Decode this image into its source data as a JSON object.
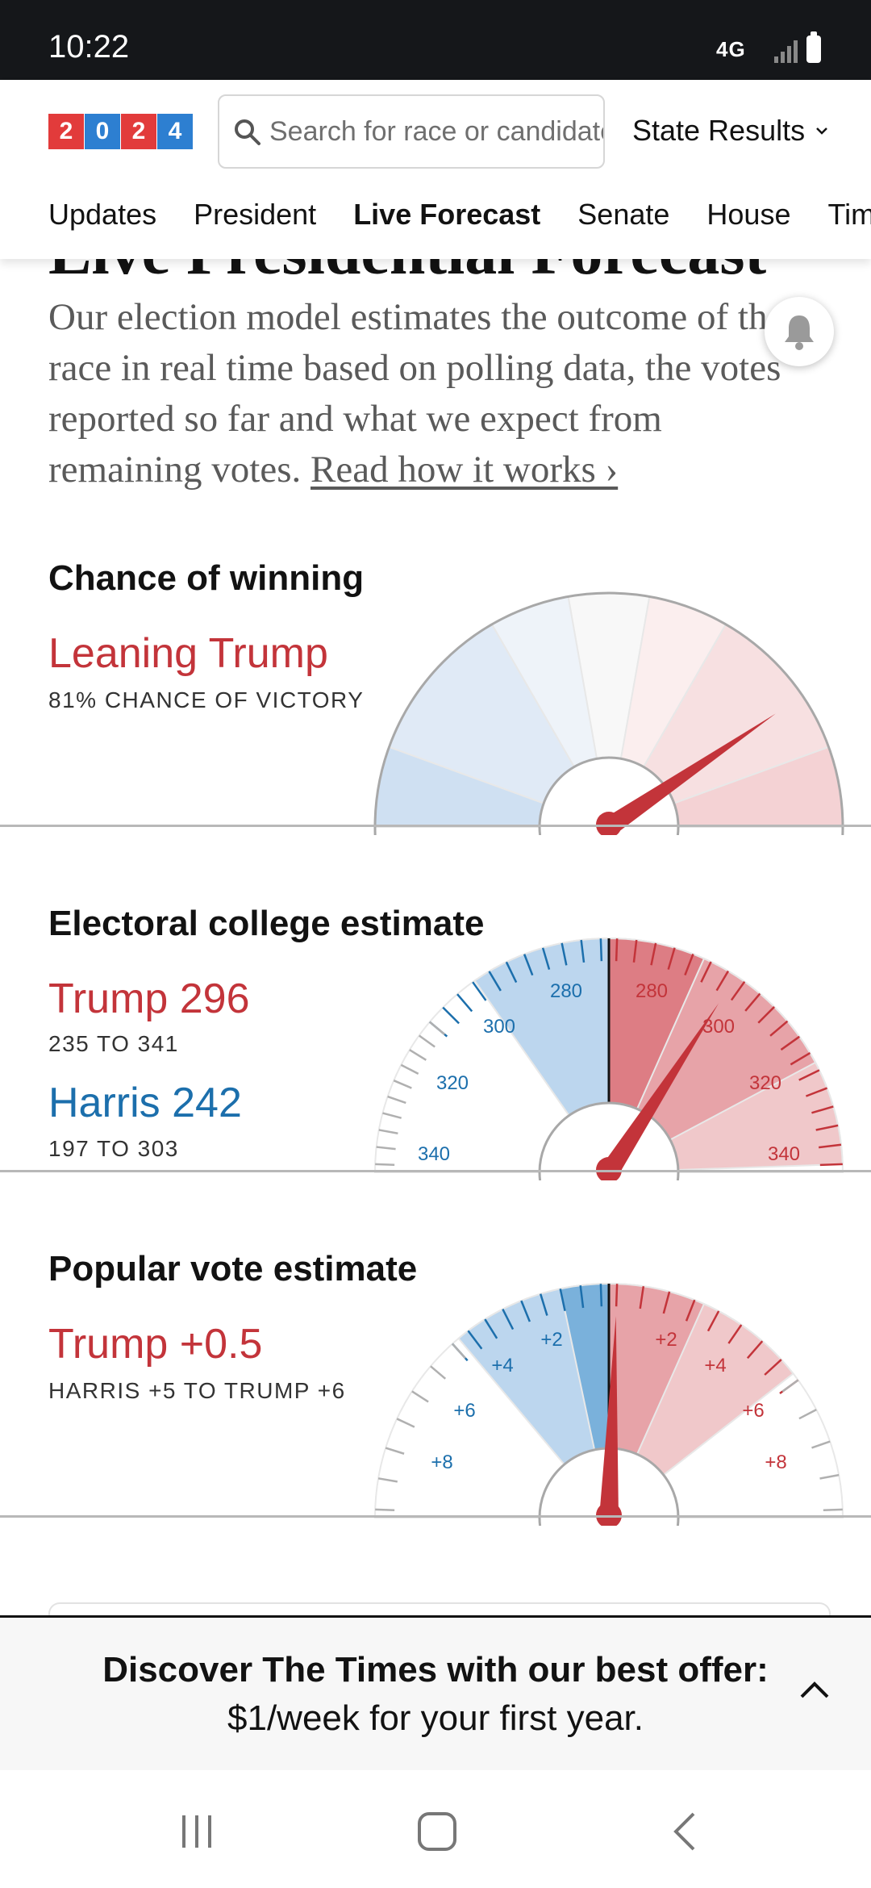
{
  "status_bar": {
    "time": "10:22",
    "network": "4G"
  },
  "header": {
    "logo_digits": [
      "2",
      "0",
      "2",
      "4"
    ],
    "search_placeholder": "Search for race or candidate",
    "state_results_label": "State Results",
    "tabs": [
      {
        "label": "Updates",
        "active": false
      },
      {
        "label": "President",
        "active": false
      },
      {
        "label": "Live Forecast",
        "active": true
      },
      {
        "label": "Senate",
        "active": false
      },
      {
        "label": "House",
        "active": false
      },
      {
        "label": "Tim",
        "active": false
      }
    ]
  },
  "page": {
    "title": "Live Presidential Forecast",
    "intro": "Our election model estimates the outcome of the race in real time based on polling data, the votes reported so far and what we expect from remaining votes.",
    "read_more": "Read how it works ›"
  },
  "chance": {
    "title": "Chance of winning",
    "leader": "Leaning Trump",
    "subtitle": "81% CHANCE OF VICTORY",
    "value": 81
  },
  "electoral": {
    "title": "Electoral college estimate",
    "trump_label": "Trump 296",
    "trump_range": "235 TO 341",
    "harris_label": "Harris 242",
    "harris_range": "197 TO 303",
    "tick_labels": [
      "280",
      "300",
      "320",
      "340"
    ],
    "trump_estimate": 296
  },
  "popular": {
    "title": "Popular vote estimate",
    "leader": "Trump +0.5",
    "range": "HARRIS +5 TO TRUMP +6",
    "tick_labels": [
      "+2",
      "+4",
      "+6",
      "+8"
    ],
    "trump_margin": 0.5
  },
  "promo": {
    "line1": "Discover The Times with our best offer:",
    "line2": "$1/week for your first year."
  },
  "colors": {
    "trump": "#c3343a",
    "harris": "#1c6fac"
  }
}
